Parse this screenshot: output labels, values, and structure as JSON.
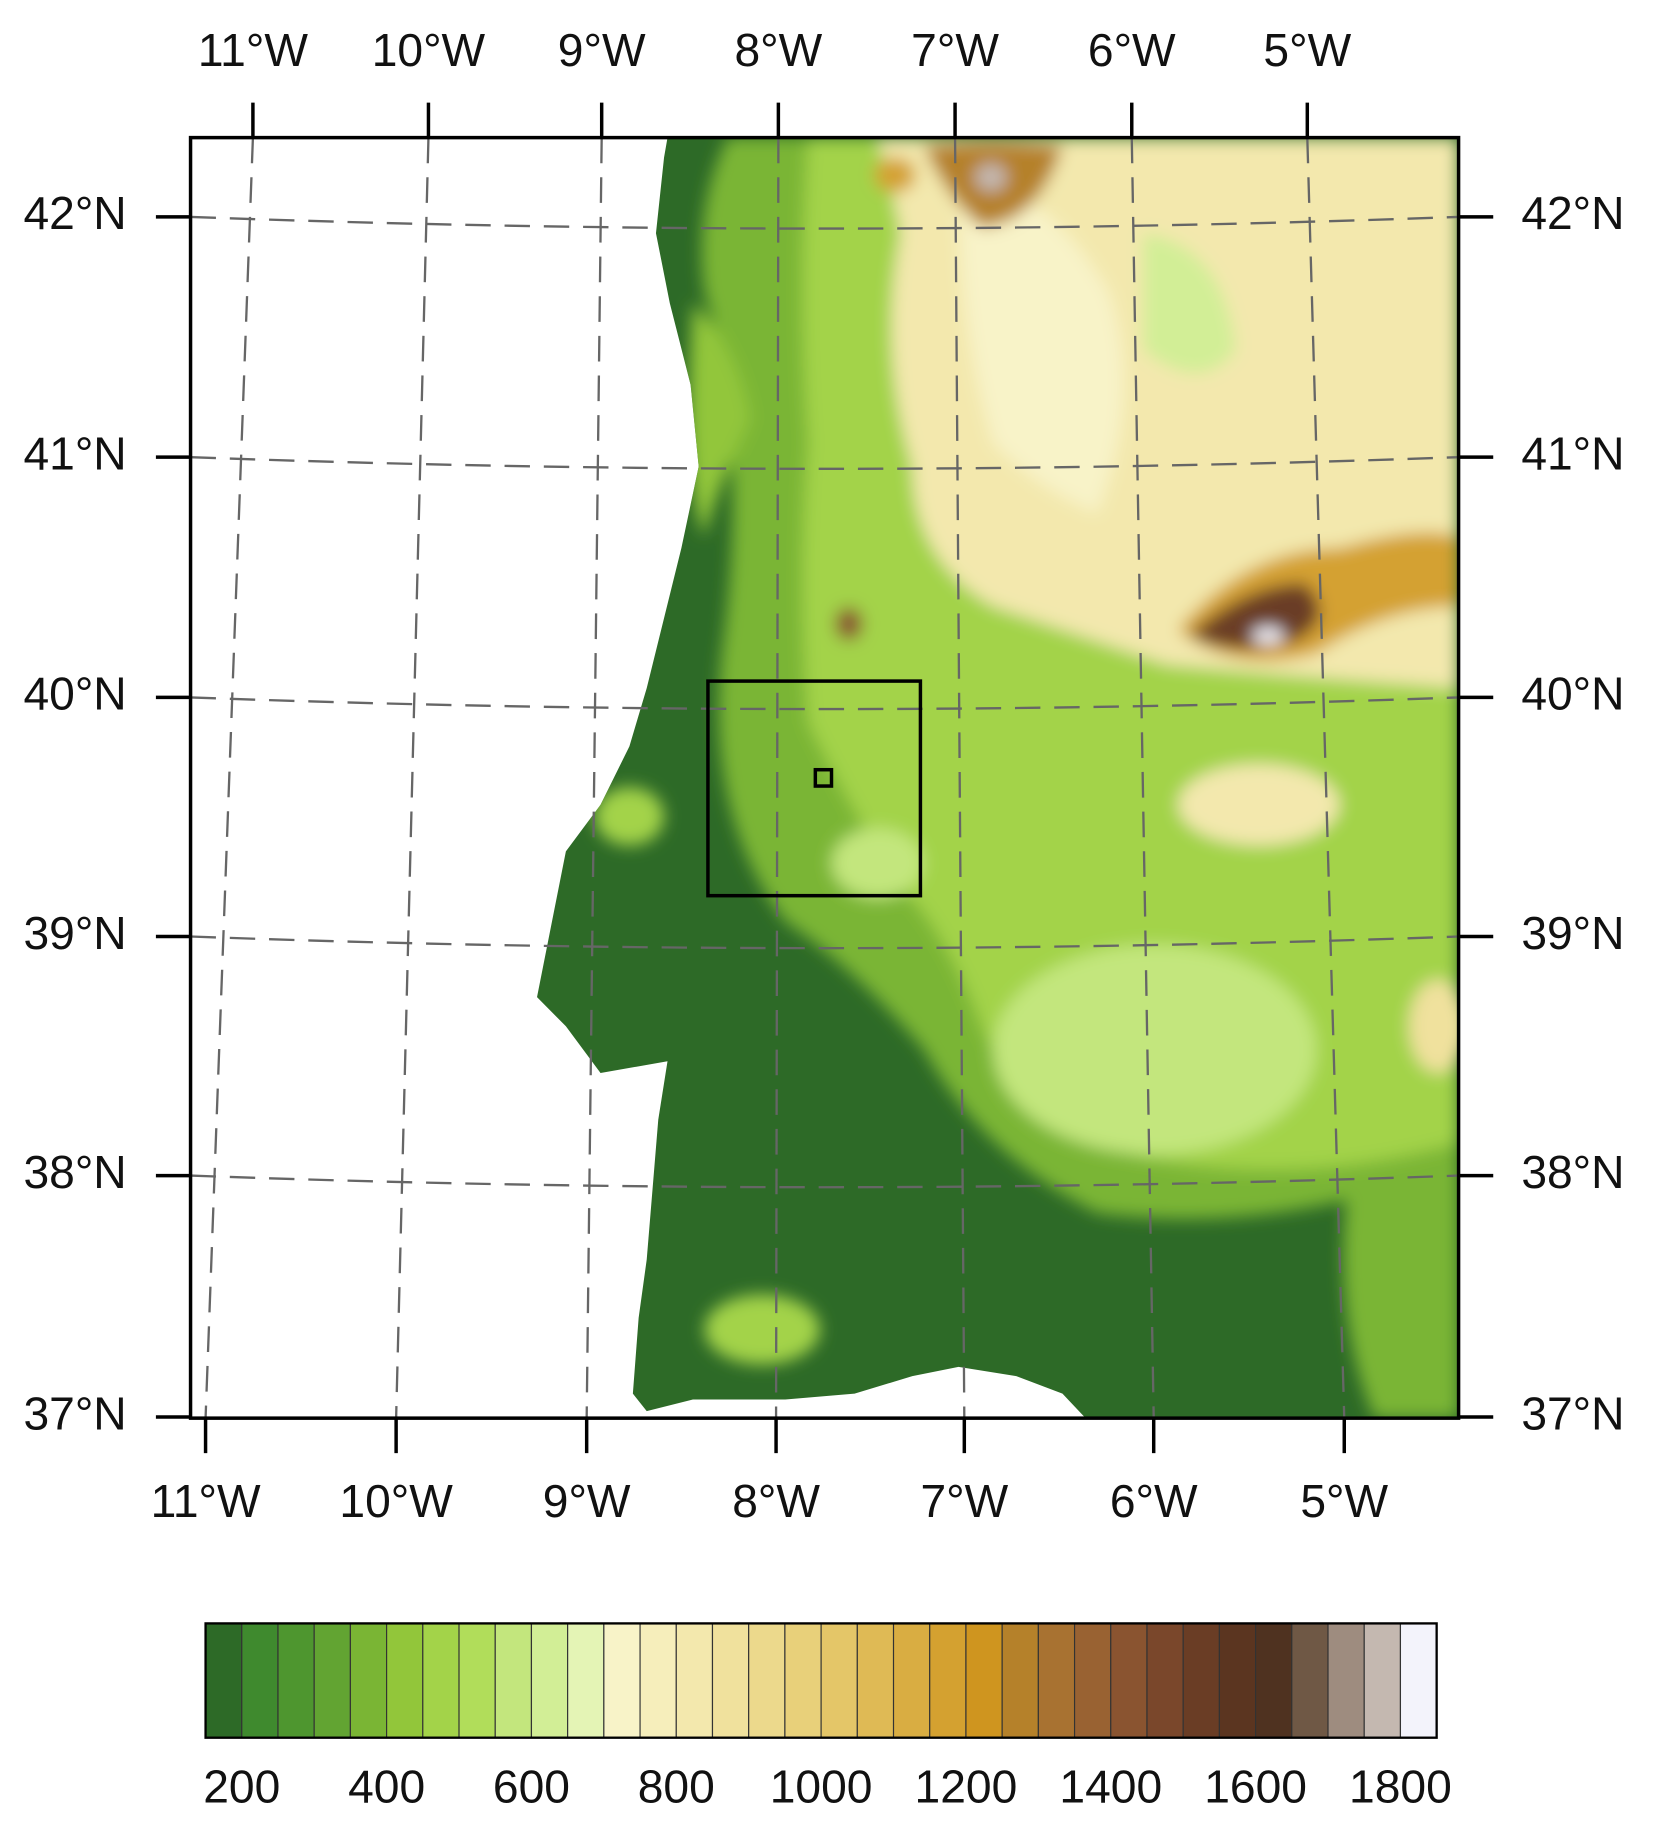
{
  "map": {
    "top_labels": [
      "11°W",
      "10°W",
      "9°W",
      "8°W",
      "7°W",
      "6°W",
      "5°W"
    ],
    "bottom_labels": [
      "11°W",
      "10°W",
      "9°W",
      "8°W",
      "7°W",
      "6°W",
      "5°W"
    ],
    "left_labels": [
      "42°N",
      "41°N",
      "40°N",
      "39°N",
      "38°N",
      "37°N"
    ],
    "right_labels": [
      "42°N",
      "41°N",
      "40°N",
      "39°N",
      "38°N",
      "37°N"
    ],
    "colorbar": {
      "ticks": [
        200,
        400,
        600,
        800,
        1000,
        1200,
        1400,
        1600,
        1800
      ],
      "colors": [
        "#2d6a27",
        "#3f8a2e",
        "#4e962f",
        "#62a432",
        "#7ab534",
        "#92c63a",
        "#a3d349",
        "#b1dd5a",
        "#c3e67d",
        "#d2ee96",
        "#e4f4b5",
        "#f8f3c8",
        "#f6eebb",
        "#f3e8ad",
        "#f0e19d",
        "#ecd98c",
        "#e8d07a",
        "#e4c668",
        "#dfba55",
        "#d9ad42",
        "#d4a130",
        "#cf951f",
        "#b5812a",
        "#a87231",
        "#996232",
        "#8a5430",
        "#7a472b",
        "#6a3d25",
        "#5b3520",
        "#4f3220",
        "#6f5845",
        "#9e8c7f",
        "#c4b8b0",
        "#f3f3fb"
      ]
    }
  }
}
